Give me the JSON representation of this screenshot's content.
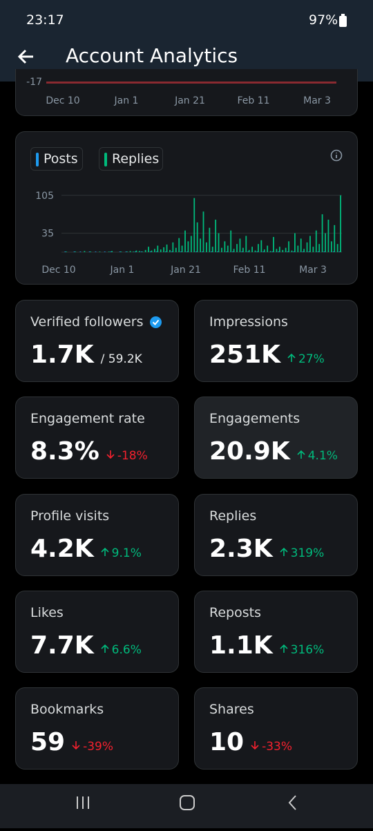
{
  "status_bar": {
    "time": "23:17",
    "battery": "97%"
  },
  "header": {
    "title": "Account Analytics"
  },
  "top_chart": {
    "ytick": "-17",
    "x_labels": [
      "Dec 10",
      "Jan 1",
      "Jan 21",
      "Feb 11",
      "Mar 3"
    ]
  },
  "activity_chart": {
    "legend": [
      "Posts",
      "Replies"
    ],
    "series": [
      {
        "name": "Posts",
        "color": "#1d9bf0",
        "values": [
          0,
          1,
          0,
          0,
          1,
          0,
          1,
          0,
          0,
          1,
          0,
          1,
          0,
          0,
          1,
          0,
          1,
          0,
          0,
          1,
          0,
          1,
          0,
          0,
          1,
          0,
          1,
          0,
          0,
          1,
          0,
          1,
          0,
          0,
          1,
          0,
          1,
          0,
          0,
          1,
          0,
          1,
          0,
          0,
          1,
          0,
          1,
          0,
          0,
          1,
          0,
          1,
          0,
          0,
          1,
          0,
          1,
          0,
          0,
          1,
          0,
          1,
          0,
          0,
          1,
          0,
          1,
          0,
          0,
          1,
          0,
          1,
          0,
          0,
          1,
          0,
          1,
          0,
          0,
          1,
          0,
          1,
          0,
          0,
          1,
          0,
          1,
          0,
          0,
          1,
          0,
          1
        ]
      },
      {
        "name": "Replies",
        "color": "#00ba7c",
        "values": [
          0,
          1,
          0,
          0,
          1,
          0,
          0,
          2,
          0,
          1,
          0,
          0,
          1,
          0,
          0,
          1,
          2,
          0,
          0,
          1,
          0,
          1,
          2,
          1,
          3,
          2,
          1,
          4,
          10,
          3,
          6,
          12,
          5,
          9,
          14,
          4,
          18,
          8,
          26,
          12,
          40,
          20,
          30,
          100,
          55,
          25,
          75,
          18,
          45,
          10,
          60,
          35,
          8,
          20,
          12,
          40,
          6,
          15,
          25,
          8,
          30,
          4,
          10,
          3,
          15,
          22,
          5,
          12,
          2,
          28,
          6,
          10,
          4,
          8,
          20,
          3,
          35,
          12,
          25,
          6,
          18,
          30,
          10,
          40,
          15,
          70,
          35,
          60,
          20,
          50,
          15,
          105
        ]
      }
    ],
    "ylim": [
      0,
      120
    ],
    "yticks": [
      35,
      105
    ],
    "x_labels": [
      "Dec 10",
      "Jan 1",
      "Jan 21",
      "Feb 11",
      "Mar 3"
    ]
  },
  "stats": [
    {
      "label": "Verified followers",
      "value": "1.7K",
      "total": "/ 59.2K"
    },
    {
      "label": "Impressions",
      "value": "251K",
      "change": "27%",
      "direction": "up"
    },
    {
      "label": "Engagement rate",
      "value": "8.3%",
      "change": "-18%",
      "direction": "down"
    },
    {
      "label": "Engagements",
      "value": "20.9K",
      "change": "4.1%",
      "direction": "up"
    },
    {
      "label": "Profile visits",
      "value": "4.2K",
      "change": "9.1%",
      "direction": "up"
    },
    {
      "label": "Replies",
      "value": "2.3K",
      "change": "319%",
      "direction": "up"
    },
    {
      "label": "Likes",
      "value": "7.7K",
      "change": "6.6%",
      "direction": "up"
    },
    {
      "label": "Reposts",
      "value": "1.1K",
      "change": "316%",
      "direction": "up"
    },
    {
      "label": "Bookmarks",
      "value": "59",
      "change": "-39%",
      "direction": "down"
    },
    {
      "label": "Shares",
      "value": "10",
      "change": "-33%",
      "direction": "down"
    }
  ]
}
